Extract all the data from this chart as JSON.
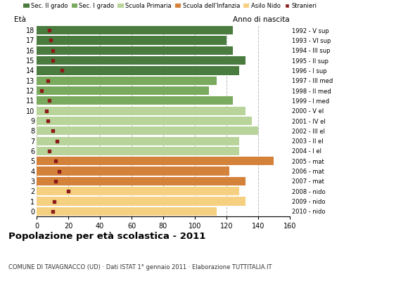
{
  "ages": [
    18,
    17,
    16,
    15,
    14,
    13,
    12,
    11,
    10,
    9,
    8,
    7,
    6,
    5,
    4,
    3,
    2,
    1,
    0
  ],
  "bar_values": [
    124,
    120,
    124,
    132,
    128,
    114,
    109,
    124,
    132,
    136,
    140,
    128,
    128,
    150,
    122,
    132,
    128,
    132,
    114
  ],
  "stranieri": [
    8,
    9,
    10,
    10,
    16,
    7,
    3,
    8,
    6,
    7,
    10,
    13,
    8,
    12,
    14,
    12,
    20,
    11,
    10
  ],
  "right_labels": [
    "1992 - V sup",
    "1993 - VI sup",
    "1994 - III sup",
    "1995 - II sup",
    "1996 - I sup",
    "1997 - III med",
    "1998 - II med",
    "1999 - I med",
    "2000 - V el",
    "2001 - IV el",
    "2002 - III el",
    "2003 - II el",
    "2004 - I el",
    "2005 - mat",
    "2006 - mat",
    "2007 - mat",
    "2008 - nido",
    "2009 - nido",
    "2010 - nido"
  ],
  "colors": {
    "Sec. II grado": "#4a7c3f",
    "Sec. I grado": "#7aaa5e",
    "Scuola Primaria": "#b8d49a",
    "Scuola dell'Infanzia": "#d4813a",
    "Asilo Nido": "#f5d080",
    "Stranieri": "#8b1a1a"
  },
  "age_categories": {
    "Sec. II grado": [
      14,
      15,
      16,
      17,
      18
    ],
    "Sec. I grado": [
      11,
      12,
      13
    ],
    "Scuola Primaria": [
      6,
      7,
      8,
      9,
      10
    ],
    "Scuola dell'Infanzia": [
      3,
      4,
      5
    ],
    "Asilo Nido": [
      0,
      1,
      2
    ]
  },
  "title": "Popolazione per età scolastica - 2011",
  "subtitle": "COMUNE DI TAVAGNACCO (UD) · Dati ISTAT 1° gennaio 2011 · Elaborazione TUTTITALIA.IT",
  "ylabel": "Età",
  "anno_label": "Anno di nascita",
  "xlim": [
    0,
    160
  ],
  "xticks": [
    0,
    20,
    40,
    60,
    80,
    100,
    120,
    140,
    160
  ],
  "grid_color": "#bbbbbb",
  "bar_height": 0.85
}
